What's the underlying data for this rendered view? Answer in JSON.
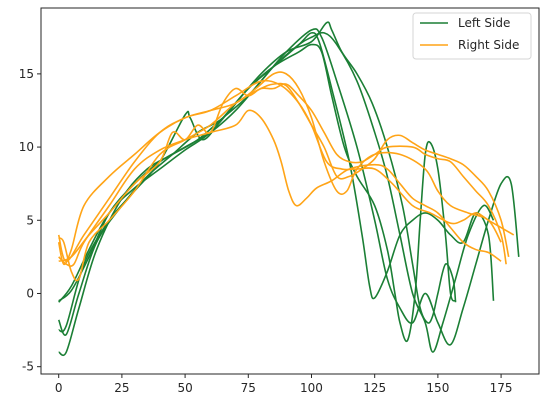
{
  "chart_data": {
    "type": "line",
    "title": "",
    "xlabel": "",
    "ylabel": "",
    "xlim": [
      -7,
      190
    ],
    "ylim": [
      -5.5,
      19.5
    ],
    "xticks": [
      0,
      25,
      50,
      75,
      100,
      125,
      150,
      175
    ],
    "yticks": [
      -5,
      0,
      5,
      10,
      15
    ],
    "grid": false,
    "legend": {
      "placement": "top-right",
      "entries": [
        {
          "label": "Left Side",
          "color": "#1b7f35"
        },
        {
          "label": "Right Side",
          "color": "#ffa417"
        }
      ]
    },
    "series": [
      {
        "name": "Left Side",
        "color": "#1b7f35",
        "points": [
          [
            0,
            -0.5
          ],
          [
            5,
            0.2
          ],
          [
            12,
            2.5
          ],
          [
            20,
            5.5
          ],
          [
            30,
            7.5
          ],
          [
            40,
            9
          ],
          [
            50,
            10
          ],
          [
            60,
            11
          ],
          [
            70,
            12.5
          ],
          [
            80,
            14.5
          ],
          [
            90,
            16.5
          ],
          [
            100,
            18
          ],
          [
            104,
            17.5
          ],
          [
            110,
            14.5
          ],
          [
            118,
            10
          ],
          [
            125,
            5
          ],
          [
            130,
            1
          ],
          [
            135,
            -1
          ],
          [
            140,
            -2
          ],
          [
            145,
            0
          ],
          [
            150,
            -2
          ],
          [
            155,
            -3.5
          ],
          [
            160,
            -1
          ],
          [
            165,
            2
          ],
          [
            170,
            5
          ],
          [
            175,
            7.5
          ],
          [
            179,
            7.5
          ],
          [
            182,
            2.5
          ]
        ]
      },
      {
        "name": "Left Side",
        "color": "#1b7f35",
        "points": [
          [
            0,
            -4
          ],
          [
            3,
            -4
          ],
          [
            8,
            -1
          ],
          [
            15,
            3
          ],
          [
            25,
            6.5
          ],
          [
            35,
            8.5
          ],
          [
            45,
            9.5
          ],
          [
            55,
            10.5
          ],
          [
            65,
            12
          ],
          [
            75,
            13.5
          ],
          [
            85,
            15.5
          ],
          [
            95,
            17
          ],
          [
            100,
            17.5
          ],
          [
            105,
            17.8
          ],
          [
            110,
            17
          ],
          [
            118,
            14.5
          ],
          [
            125,
            11
          ],
          [
            130,
            8
          ],
          [
            135,
            4
          ],
          [
            140,
            0
          ],
          [
            145,
            -2
          ],
          [
            148,
            -4
          ],
          [
            152,
            -2
          ],
          [
            157,
            1
          ],
          [
            162,
            4
          ],
          [
            168,
            6
          ],
          [
            172,
            5
          ]
        ]
      },
      {
        "name": "Left Side",
        "color": "#1b7f35",
        "points": [
          [
            0,
            -1.8
          ],
          [
            3,
            -2.8
          ],
          [
            8,
            0
          ],
          [
            15,
            3.5
          ],
          [
            25,
            6
          ],
          [
            35,
            8
          ],
          [
            45,
            9.5
          ],
          [
            55,
            11
          ],
          [
            65,
            12
          ],
          [
            75,
            14
          ],
          [
            85,
            15.5
          ],
          [
            95,
            17
          ],
          [
            100,
            17.8
          ],
          [
            103,
            17.2
          ],
          [
            108,
            14
          ],
          [
            115,
            9
          ],
          [
            120,
            4
          ],
          [
            123,
            0.5
          ],
          [
            125,
            -0.3
          ],
          [
            130,
            1.5
          ],
          [
            135,
            4
          ],
          [
            140,
            5
          ],
          [
            145,
            5.5
          ],
          [
            150,
            5
          ],
          [
            155,
            4
          ],
          [
            160,
            3.5
          ],
          [
            165,
            5.5
          ],
          [
            170,
            4
          ],
          [
            172,
            -0.5
          ]
        ]
      },
      {
        "name": "Left Side",
        "color": "#1b7f35",
        "points": [
          [
            0,
            -2.5
          ],
          [
            3,
            -2.2
          ],
          [
            10,
            2
          ],
          [
            20,
            5
          ],
          [
            30,
            7
          ],
          [
            40,
            9
          ],
          [
            50,
            12.2
          ],
          [
            52,
            12
          ],
          [
            57,
            10.5
          ],
          [
            65,
            12
          ],
          [
            75,
            14
          ],
          [
            85,
            15.5
          ],
          [
            95,
            16.5
          ],
          [
            100,
            17
          ],
          [
            104,
            16.5
          ],
          [
            108,
            13.5
          ],
          [
            113,
            10
          ],
          [
            118,
            8
          ],
          [
            125,
            6
          ],
          [
            130,
            3
          ],
          [
            133,
            0
          ],
          [
            135,
            -2
          ],
          [
            138,
            -3.2
          ],
          [
            141,
            0
          ],
          [
            143,
            5
          ],
          [
            145,
            9.5
          ],
          [
            147,
            10.3
          ],
          [
            150,
            8.5
          ],
          [
            153,
            4
          ],
          [
            155,
            0
          ],
          [
            157,
            -0.5
          ]
        ]
      },
      {
        "name": "Left Side",
        "color": "#1b7f35",
        "points": [
          [
            0,
            -0.6
          ],
          [
            5,
            0.5
          ],
          [
            12,
            3
          ],
          [
            20,
            5.5
          ],
          [
            30,
            7.2
          ],
          [
            40,
            8.5
          ],
          [
            50,
            9.8
          ],
          [
            60,
            11
          ],
          [
            70,
            13
          ],
          [
            80,
            15
          ],
          [
            90,
            16.5
          ],
          [
            100,
            17.2
          ],
          [
            106,
            18.5
          ],
          [
            108,
            18
          ],
          [
            112,
            16.5
          ],
          [
            118,
            15
          ],
          [
            124,
            13
          ],
          [
            130,
            10
          ],
          [
            136,
            6
          ],
          [
            140,
            2
          ],
          [
            143,
            -1
          ],
          [
            146,
            -2
          ],
          [
            148,
            -1.5
          ],
          [
            150,
            0
          ],
          [
            153,
            2
          ],
          [
            156,
            1
          ],
          [
            157,
            -0.6
          ]
        ]
      },
      {
        "name": "Right Side",
        "color": "#ffa417",
        "points": [
          [
            0,
            4
          ],
          [
            3,
            2.2
          ],
          [
            10,
            4
          ],
          [
            20,
            6.5
          ],
          [
            30,
            9
          ],
          [
            40,
            11
          ],
          [
            50,
            12
          ],
          [
            60,
            12.5
          ],
          [
            70,
            13.5
          ],
          [
            80,
            14.5
          ],
          [
            88,
            14.2
          ],
          [
            95,
            13
          ],
          [
            100,
            11.5
          ],
          [
            106,
            9
          ],
          [
            112,
            8.5
          ],
          [
            118,
            8.5
          ],
          [
            125,
            8.5
          ],
          [
            132,
            7.5
          ],
          [
            140,
            6
          ],
          [
            147,
            5.5
          ],
          [
            155,
            4.8
          ],
          [
            160,
            5
          ],
          [
            165,
            5.5
          ],
          [
            170,
            5
          ],
          [
            175,
            4.5
          ],
          [
            180,
            4
          ]
        ]
      },
      {
        "name": "Right Side",
        "color": "#ffa417",
        "points": [
          [
            0,
            3.5
          ],
          [
            2,
            2
          ],
          [
            5,
            3
          ],
          [
            10,
            6
          ],
          [
            20,
            8
          ],
          [
            30,
            9.5
          ],
          [
            40,
            11
          ],
          [
            50,
            12
          ],
          [
            60,
            12.5
          ],
          [
            70,
            13
          ],
          [
            78,
            14
          ],
          [
            85,
            15
          ],
          [
            90,
            15
          ],
          [
            95,
            14
          ],
          [
            100,
            12
          ],
          [
            105,
            9
          ],
          [
            110,
            7
          ],
          [
            114,
            7
          ],
          [
            118,
            8.5
          ],
          [
            125,
            9.5
          ],
          [
            135,
            9.5
          ],
          [
            145,
            8.5
          ],
          [
            150,
            7
          ],
          [
            155,
            6
          ],
          [
            162,
            5.5
          ],
          [
            170,
            5
          ],
          [
            175,
            3.5
          ]
        ]
      },
      {
        "name": "Right Side",
        "color": "#ffa417",
        "points": [
          [
            0,
            2.5
          ],
          [
            3,
            2
          ],
          [
            6,
            2
          ],
          [
            10,
            3.5
          ],
          [
            20,
            6
          ],
          [
            30,
            8.5
          ],
          [
            40,
            9.8
          ],
          [
            50,
            10.5
          ],
          [
            60,
            11
          ],
          [
            70,
            11.5
          ],
          [
            75,
            12.5
          ],
          [
            80,
            12
          ],
          [
            85,
            10.5
          ],
          [
            88,
            9
          ],
          [
            91,
            7
          ],
          [
            94,
            6
          ],
          [
            98,
            6.5
          ],
          [
            102,
            7.2
          ],
          [
            108,
            7.7
          ],
          [
            115,
            8.5
          ],
          [
            125,
            8.8
          ],
          [
            130,
            8.5
          ],
          [
            135,
            7.5
          ],
          [
            140,
            6.5
          ],
          [
            145,
            6
          ],
          [
            150,
            5.5
          ],
          [
            155,
            4.5
          ],
          [
            160,
            3.5
          ],
          [
            165,
            3
          ],
          [
            170,
            2.8
          ],
          [
            175,
            2.2
          ]
        ]
      },
      {
        "name": "Right Side",
        "color": "#ffa417",
        "points": [
          [
            0,
            2.2
          ],
          [
            5,
            2.5
          ],
          [
            12,
            4
          ],
          [
            20,
            5.5
          ],
          [
            30,
            7.5
          ],
          [
            40,
            9
          ],
          [
            45,
            11
          ],
          [
            50,
            10.5
          ],
          [
            55,
            11.5
          ],
          [
            60,
            11
          ],
          [
            65,
            13
          ],
          [
            70,
            14
          ],
          [
            75,
            13.5
          ],
          [
            80,
            14
          ],
          [
            85,
            14
          ],
          [
            90,
            14.3
          ],
          [
            95,
            13.5
          ],
          [
            100,
            12.5
          ],
          [
            105,
            11
          ],
          [
            110,
            9.5
          ],
          [
            115,
            9
          ],
          [
            120,
            9
          ],
          [
            125,
            9.5
          ],
          [
            130,
            10
          ],
          [
            140,
            10
          ],
          [
            145,
            9.5
          ],
          [
            150,
            9.2
          ],
          [
            155,
            9
          ],
          [
            160,
            8
          ],
          [
            165,
            7
          ],
          [
            170,
            6
          ],
          [
            175,
            4
          ],
          [
            177,
            2
          ]
        ]
      },
      {
        "name": "Right Side",
        "color": "#ffa417",
        "points": [
          [
            0,
            3.8
          ],
          [
            2,
            3.5
          ],
          [
            5,
            1.5
          ],
          [
            8,
            1
          ],
          [
            12,
            3.5
          ],
          [
            20,
            5
          ],
          [
            30,
            7
          ],
          [
            40,
            9.5
          ],
          [
            50,
            10.5
          ],
          [
            60,
            11.5
          ],
          [
            70,
            13
          ],
          [
            80,
            14
          ],
          [
            85,
            14.3
          ],
          [
            90,
            14.2
          ],
          [
            95,
            13
          ],
          [
            100,
            11.5
          ],
          [
            105,
            10
          ],
          [
            110,
            8
          ],
          [
            115,
            8
          ],
          [
            120,
            8.5
          ],
          [
            125,
            9.2
          ],
          [
            130,
            10.5
          ],
          [
            135,
            10.8
          ],
          [
            140,
            10.3
          ],
          [
            145,
            9.8
          ],
          [
            150,
            9.5
          ],
          [
            155,
            9.2
          ],
          [
            160,
            8.8
          ],
          [
            165,
            8
          ],
          [
            170,
            7
          ],
          [
            175,
            5
          ],
          [
            178,
            2.5
          ]
        ]
      }
    ]
  }
}
